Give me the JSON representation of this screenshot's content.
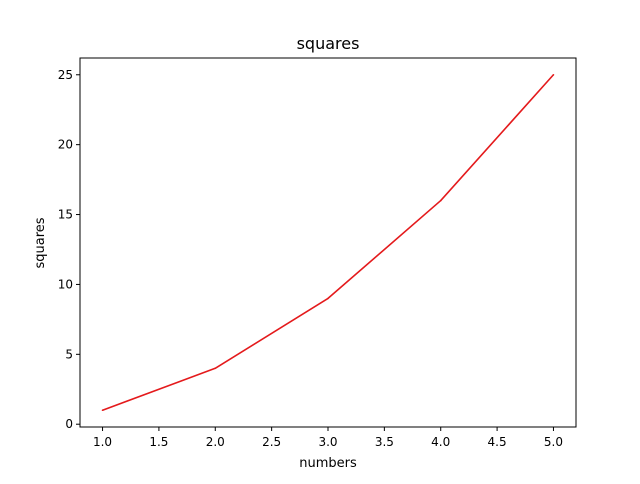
{
  "chart_data": {
    "type": "line",
    "title": "squares",
    "xlabel": "numbers",
    "ylabel": "squares",
    "xlim": [
      0.8,
      5.2
    ],
    "ylim": [
      -0.2,
      26.2
    ],
    "xticks": [
      1.0,
      1.5,
      2.0,
      2.5,
      3.0,
      3.5,
      4.0,
      4.5,
      5.0
    ],
    "xtick_labels": [
      "1.0",
      "1.5",
      "2.0",
      "2.5",
      "3.0",
      "3.5",
      "4.0",
      "4.5",
      "5.0"
    ],
    "yticks": [
      0,
      5,
      10,
      15,
      20,
      25
    ],
    "ytick_labels": [
      "0",
      "5",
      "10",
      "15",
      "20",
      "25"
    ],
    "grid": false,
    "series": [
      {
        "x": [
          1,
          2,
          3,
          4,
          5
        ],
        "y": [
          1,
          4,
          9,
          16,
          25
        ],
        "color": "#e41a1c"
      }
    ]
  }
}
